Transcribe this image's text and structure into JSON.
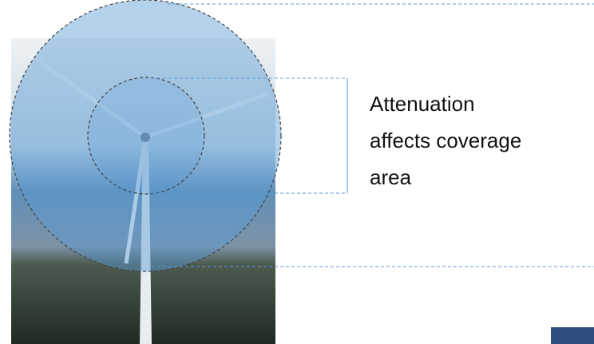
{
  "annotation": {
    "lines": [
      "Attenuation",
      "affects coverage",
      "area"
    ]
  }
}
